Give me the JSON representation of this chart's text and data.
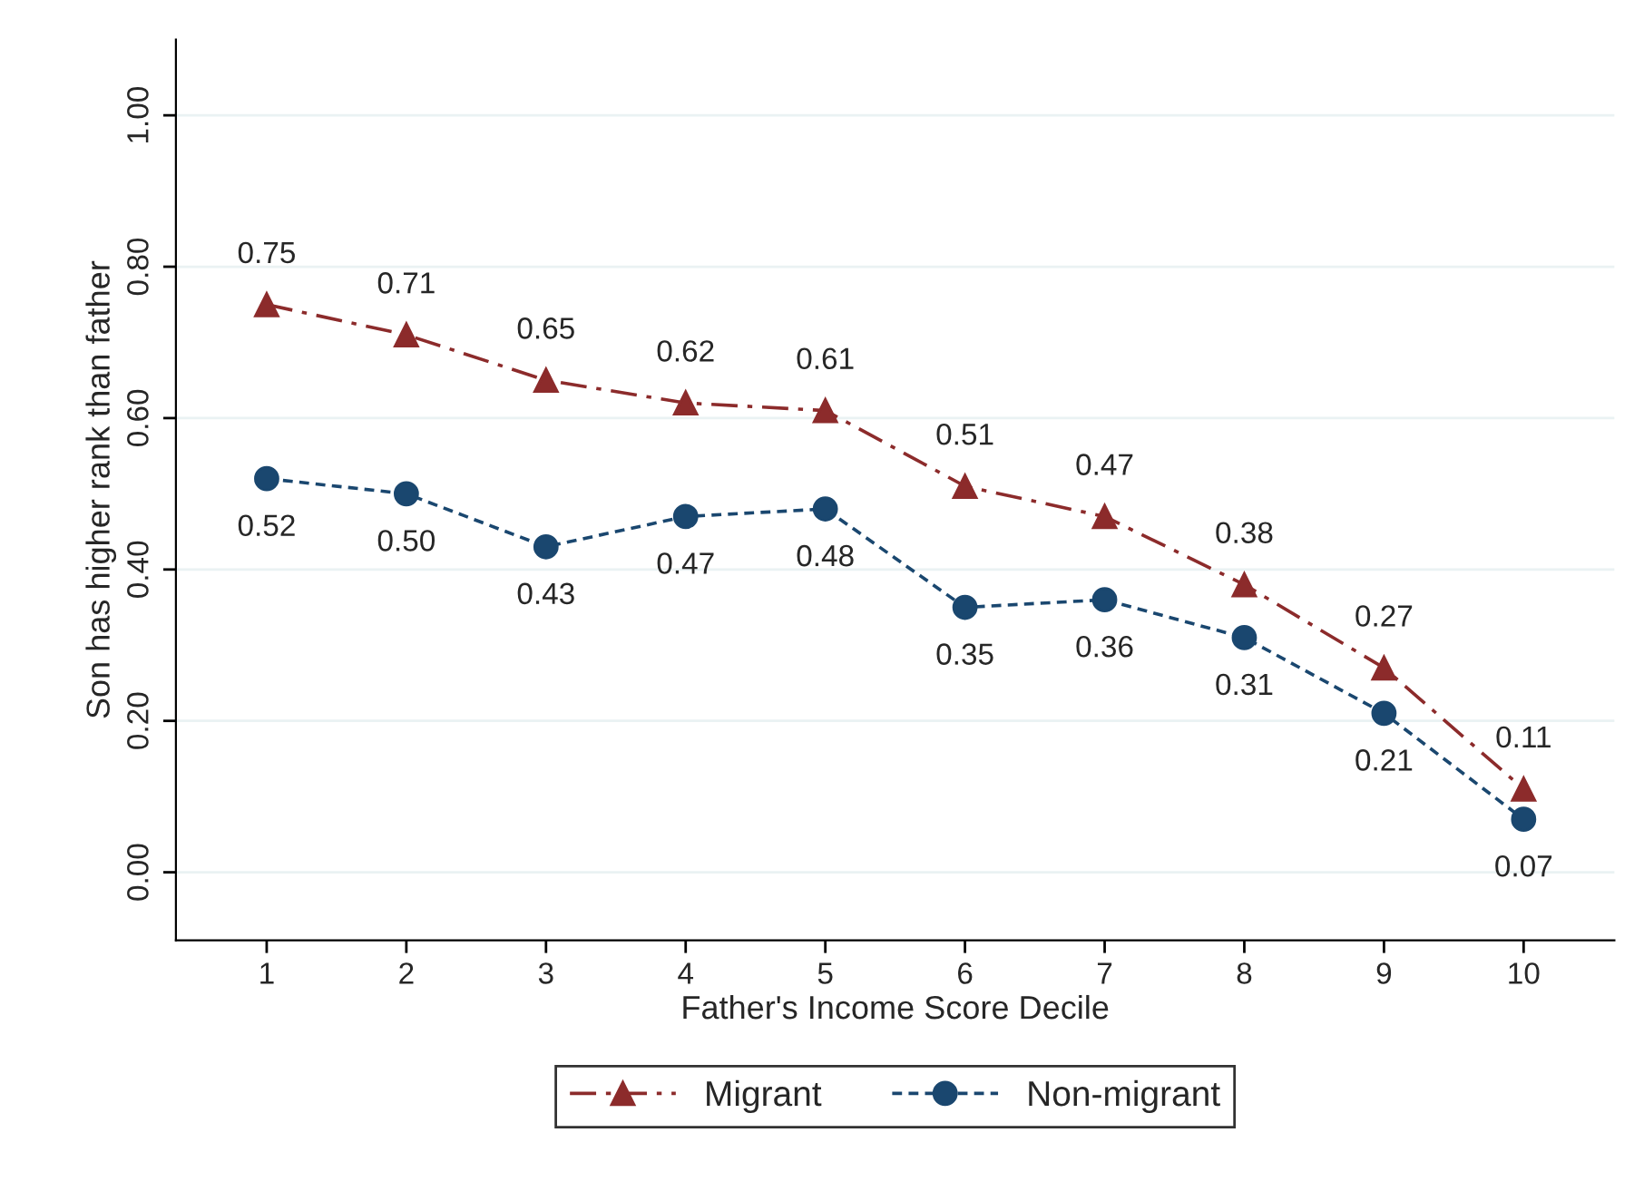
{
  "chart_data": {
    "type": "line",
    "xlabel": "Father's Income Score Decile",
    "ylabel": "Son has higher rank than father",
    "x": [
      1,
      2,
      3,
      4,
      5,
      6,
      7,
      8,
      9,
      10
    ],
    "series": [
      {
        "name": "Migrant",
        "color": "#8c2b2b",
        "marker": "triangle",
        "line_style": "dashdot",
        "values": [
          0.75,
          0.71,
          0.65,
          0.62,
          0.61,
          0.51,
          0.47,
          0.38,
          0.27,
          0.11
        ],
        "value_labels": [
          "0.75",
          "0.71",
          "0.65",
          "0.62",
          "0.61",
          "0.51",
          "0.47",
          "0.38",
          "0.27",
          "0.11"
        ]
      },
      {
        "name": "Non-migrant",
        "color": "#1a476f",
        "marker": "circle",
        "line_style": "dashed",
        "values": [
          0.52,
          0.5,
          0.43,
          0.47,
          0.48,
          0.35,
          0.36,
          0.31,
          0.21,
          0.07
        ],
        "value_labels": [
          "0.52",
          "0.50",
          "0.43",
          "0.47",
          "0.48",
          "0.35",
          "0.36",
          "0.31",
          "0.21",
          "0.07"
        ]
      }
    ],
    "xlim": [
      0.35,
      10.65
    ],
    "xticks": [
      1,
      2,
      3,
      4,
      5,
      6,
      7,
      8,
      9,
      10
    ],
    "ylim": [
      -0.09,
      1.1
    ],
    "yticks": [
      {
        "value": 0,
        "label": "0.00"
      },
      {
        "value": 0.2,
        "label": "0.20"
      },
      {
        "value": 0.4,
        "label": "0.40"
      },
      {
        "value": 0.6,
        "label": "0.60"
      },
      {
        "value": 0.8,
        "label": "0.80"
      },
      {
        "value": 1.0,
        "label": "1.00"
      }
    ],
    "grid": "y",
    "legend": "bottom"
  }
}
